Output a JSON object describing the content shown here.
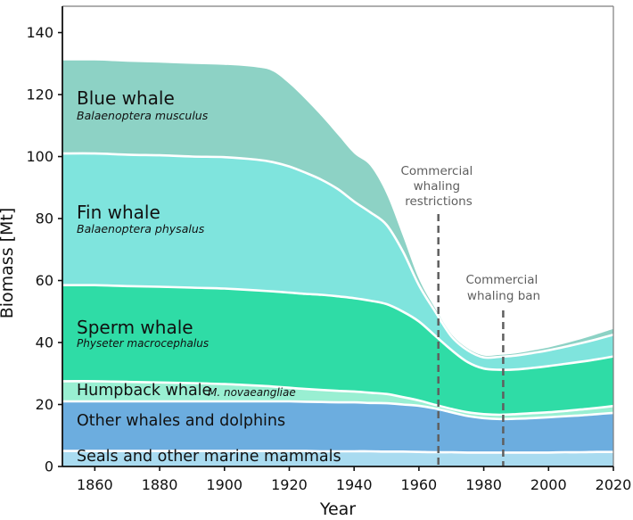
{
  "chart_data": {
    "type": "area",
    "stacked": true,
    "xlabel": "Year",
    "ylabel": "Biomass [Mt]",
    "x_range": [
      1850,
      2020
    ],
    "y_range": [
      0,
      148.5
    ],
    "x_ticks": [
      1860,
      1880,
      1900,
      1920,
      1940,
      1960,
      1980,
      2000,
      2020
    ],
    "y_ticks": [
      0,
      20,
      40,
      60,
      80,
      100,
      120,
      140
    ],
    "grid": false,
    "legend": "labels drawn inside bands",
    "separator_color": "#ffffff",
    "years": [
      1850,
      1860,
      1870,
      1880,
      1890,
      1900,
      1910,
      1915,
      1920,
      1925,
      1930,
      1935,
      1940,
      1945,
      1950,
      1955,
      1960,
      1965,
      1970,
      1975,
      1980,
      1985,
      1990,
      1995,
      2000,
      2005,
      2010,
      2015,
      2020
    ],
    "series": [
      {
        "name": "seals",
        "label": "Seals and other marine mammals",
        "latin": "",
        "color": "#a9dbf0",
        "values": [
          5,
          5,
          5,
          5,
          5,
          5,
          5,
          5,
          5,
          5,
          4.9,
          4.9,
          4.9,
          4.9,
          4.8,
          4.8,
          4.7,
          4.6,
          4.6,
          4.5,
          4.5,
          4.5,
          4.5,
          4.5,
          4.5,
          4.6,
          4.6,
          4.7,
          4.7
        ]
      },
      {
        "name": "other-whales-dolphins",
        "label": "Other whales and dolphins",
        "latin": "",
        "color": "#6caddf",
        "values": [
          16,
          16,
          16,
          16,
          16,
          16,
          16,
          16,
          16,
          15.9,
          15.9,
          15.8,
          15.8,
          15.6,
          15.6,
          15.2,
          14.9,
          14.1,
          12.9,
          11.8,
          11.1,
          10.8,
          10.9,
          11.1,
          11.4,
          11.6,
          11.9,
          12.2,
          12.6
        ]
      },
      {
        "name": "humpback-whale",
        "label": "Humpback whale",
        "latin": "M. novaeangliae",
        "color": "#99efd2",
        "values": [
          6.5,
          6.5,
          6.3,
          6.1,
          5.9,
          5.6,
          5.1,
          4.8,
          4.4,
          4.1,
          3.9,
          3.7,
          3.5,
          3.3,
          3.0,
          2.4,
          1.7,
          1.2,
          1.1,
          1.2,
          1.3,
          1.4,
          1.5,
          1.6,
          1.6,
          1.7,
          1.9,
          2.0,
          2.2
        ]
      },
      {
        "name": "sperm-whale",
        "label": "Sperm whale",
        "latin": "Physeter macrocephalus",
        "color": "#2fdca6",
        "values": [
          31,
          31,
          30.9,
          30.9,
          30.8,
          30.8,
          30.7,
          30.7,
          30.7,
          30.7,
          30.7,
          30.5,
          30.1,
          29.7,
          29.0,
          27.6,
          25.5,
          22.3,
          19.0,
          16.2,
          14.7,
          14.5,
          14.4,
          14.6,
          14.9,
          15.2,
          15.4,
          15.7,
          16.0
        ]
      },
      {
        "name": "fin-whale",
        "label": "Fin whale",
        "latin": "Balaenoptera physalus",
        "color": "#7fe4dd",
        "values": [
          42.5,
          42.5,
          42.4,
          42.4,
          42.3,
          42.4,
          42.2,
          41.7,
          40.7,
          39.1,
          37.1,
          34.6,
          31.2,
          28.5,
          25.6,
          19.5,
          11.7,
          7.8,
          4.4,
          3.8,
          3.6,
          4.2,
          4.5,
          4.8,
          5.1,
          5.5,
          6.0,
          6.5,
          7.0
        ]
      },
      {
        "name": "blue-whale",
        "label": "Blue whale",
        "latin": "Balaenoptera musculus",
        "color": "#8dd2c5",
        "values": [
          30,
          30,
          30,
          29.9,
          29.9,
          29.8,
          29.8,
          29.3,
          26.7,
          23.7,
          20.5,
          17.5,
          15.5,
          15.0,
          10.0,
          5.0,
          2.0,
          1.0,
          0.7,
          0.6,
          0.6,
          0.6,
          0.7,
          0.8,
          0.9,
          1.1,
          1.3,
          1.6,
          1.9
        ]
      }
    ],
    "annotations": [
      {
        "year": 1966,
        "label_lines": [
          "Commercial",
          "whaling",
          "restrictions"
        ]
      },
      {
        "year": 1986,
        "label_lines": [
          "Commercial",
          "whaling ban"
        ]
      }
    ]
  }
}
